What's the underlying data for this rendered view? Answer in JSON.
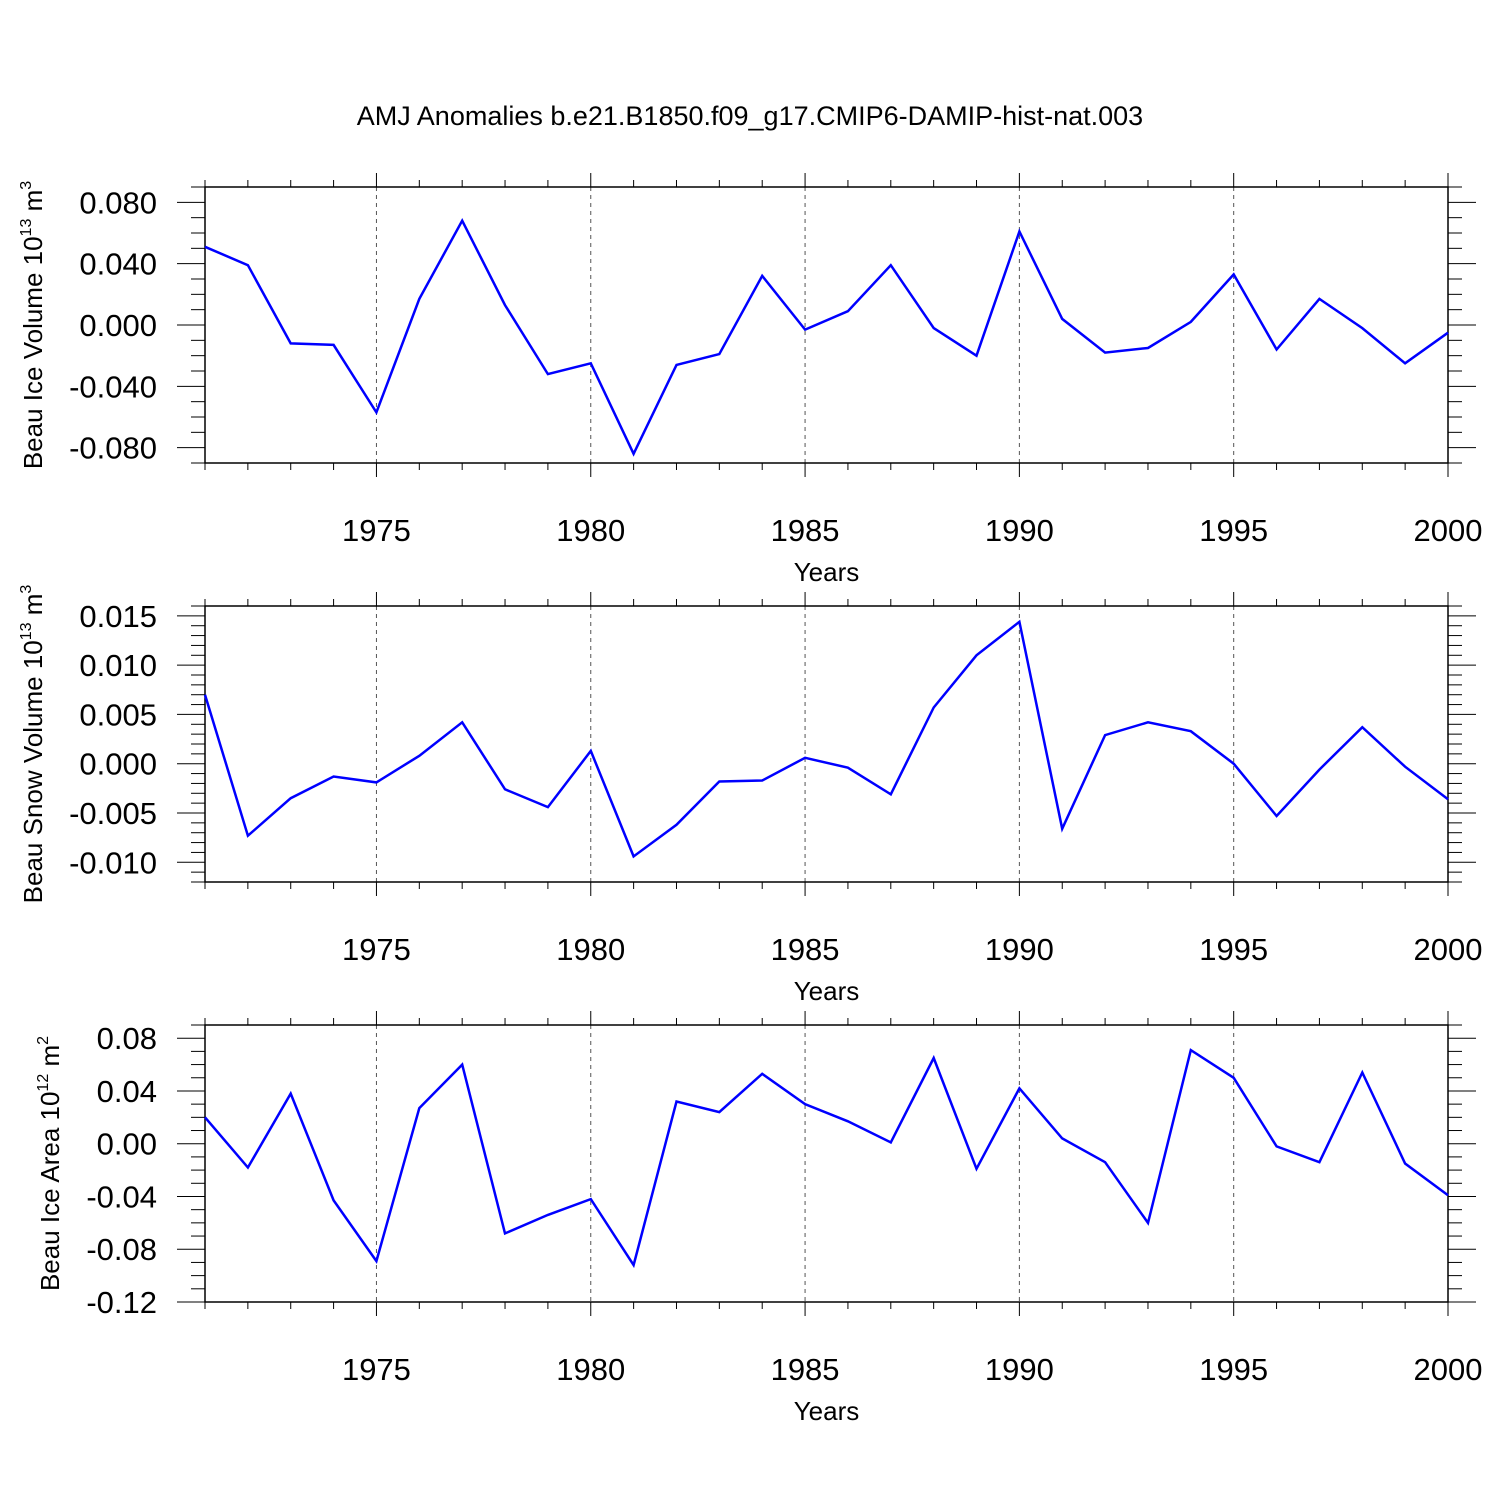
{
  "figure": {
    "title": "AMJ Anomalies b.e21.B1850.f09_g17.CMIP6-DAMIP-hist-nat.003",
    "line_color": "#0000ff",
    "grid_color": "#555555"
  },
  "chart_data": [
    {
      "type": "line",
      "ylabel_main": "Beau Ice Volume 10",
      "ylabel_sup": "13",
      "ylabel_unit": " m",
      "ylabel_unit_sup": "3",
      "xlabel": "Years",
      "xlim": [
        1971,
        2000
      ],
      "ylim": [
        -0.09,
        0.09
      ],
      "yticks": [
        -0.08,
        -0.04,
        0.0,
        0.04,
        0.08
      ],
      "ytick_labels": [
        "-0.080",
        "-0.040",
        "0.000",
        "0.040",
        "0.080"
      ],
      "yminor_step": 0.01,
      "xticks": [
        1975,
        1980,
        1985,
        1990,
        1995,
        2000
      ],
      "xtick_labels": [
        "1975",
        "1980",
        "1985",
        "1990",
        "1995",
        "2000"
      ],
      "x": [
        1971,
        1972,
        1973,
        1974,
        1975,
        1976,
        1977,
        1978,
        1979,
        1980,
        1981,
        1982,
        1983,
        1984,
        1985,
        1986,
        1987,
        1988,
        1989,
        1990,
        1991,
        1992,
        1993,
        1994,
        1995,
        1996,
        1997,
        1998,
        1999,
        2000
      ],
      "values": [
        0.051,
        0.039,
        -0.012,
        -0.013,
        -0.057,
        0.017,
        0.068,
        0.013,
        -0.032,
        -0.025,
        -0.084,
        -0.026,
        -0.019,
        0.032,
        -0.003,
        0.009,
        0.039,
        -0.002,
        -0.02,
        0.061,
        0.004,
        -0.018,
        -0.015,
        0.002,
        0.033,
        -0.016,
        0.017,
        -0.002,
        -0.025,
        -0.005
      ]
    },
    {
      "type": "line",
      "ylabel_main": "Beau Snow Volume 10",
      "ylabel_sup": "13",
      "ylabel_unit": " m",
      "ylabel_unit_sup": "3",
      "xlabel": "Years",
      "xlim": [
        1971,
        2000
      ],
      "ylim": [
        -0.012,
        0.016
      ],
      "yticks": [
        -0.01,
        -0.005,
        0.0,
        0.005,
        0.01,
        0.015
      ],
      "ytick_labels": [
        "-0.010",
        "-0.005",
        "0.000",
        "0.005",
        "0.010",
        "0.015"
      ],
      "yminor_step": 0.001,
      "xticks": [
        1975,
        1980,
        1985,
        1990,
        1995,
        2000
      ],
      "xtick_labels": [
        "1975",
        "1980",
        "1985",
        "1990",
        "1995",
        "2000"
      ],
      "x": [
        1971,
        1972,
        1973,
        1974,
        1975,
        1976,
        1977,
        1978,
        1979,
        1980,
        1981,
        1982,
        1983,
        1984,
        1985,
        1986,
        1987,
        1988,
        1989,
        1990,
        1991,
        1992,
        1993,
        1994,
        1995,
        1996,
        1997,
        1998,
        1999,
        2000
      ],
      "values": [
        0.007,
        -0.0073,
        -0.0035,
        -0.0013,
        -0.0019,
        0.0008,
        0.0042,
        -0.0026,
        -0.0044,
        0.0013,
        -0.0094,
        -0.0062,
        -0.0018,
        -0.0017,
        0.0006,
        -0.0004,
        -0.0031,
        0.0057,
        0.011,
        0.0144,
        -0.0066,
        0.0029,
        0.0042,
        0.0033,
        0.0,
        -0.0053,
        -0.0006,
        0.0037,
        -0.0003,
        -0.0036
      ]
    },
    {
      "type": "line",
      "ylabel_main": "Beau Ice Area 10",
      "ylabel_sup": "12",
      "ylabel_unit": " m",
      "ylabel_unit_sup": "2",
      "xlabel": "Years",
      "xlim": [
        1971,
        2000
      ],
      "ylim": [
        -0.12,
        0.09
      ],
      "yticks": [
        -0.12,
        -0.08,
        -0.04,
        0.0,
        0.04,
        0.08
      ],
      "ytick_labels": [
        "-0.12",
        "-0.08",
        "-0.04",
        "0.00",
        "0.04",
        "0.08"
      ],
      "yminor_step": 0.01,
      "xticks": [
        1975,
        1980,
        1985,
        1990,
        1995,
        2000
      ],
      "xtick_labels": [
        "1975",
        "1980",
        "1985",
        "1990",
        "1995",
        "2000"
      ],
      "x": [
        1971,
        1972,
        1973,
        1974,
        1975,
        1976,
        1977,
        1978,
        1979,
        1980,
        1981,
        1982,
        1983,
        1984,
        1985,
        1986,
        1987,
        1988,
        1989,
        1990,
        1991,
        1992,
        1993,
        1994,
        1995,
        1996,
        1997,
        1998,
        1999,
        2000
      ],
      "values": [
        0.02,
        -0.018,
        0.038,
        -0.043,
        -0.089,
        0.027,
        0.06,
        -0.068,
        -0.054,
        -0.042,
        -0.092,
        0.032,
        0.024,
        0.053,
        0.03,
        0.017,
        0.001,
        0.065,
        -0.019,
        0.042,
        0.004,
        -0.014,
        -0.06,
        0.071,
        0.05,
        -0.002,
        -0.014,
        0.054,
        -0.015,
        -0.039
      ]
    }
  ]
}
